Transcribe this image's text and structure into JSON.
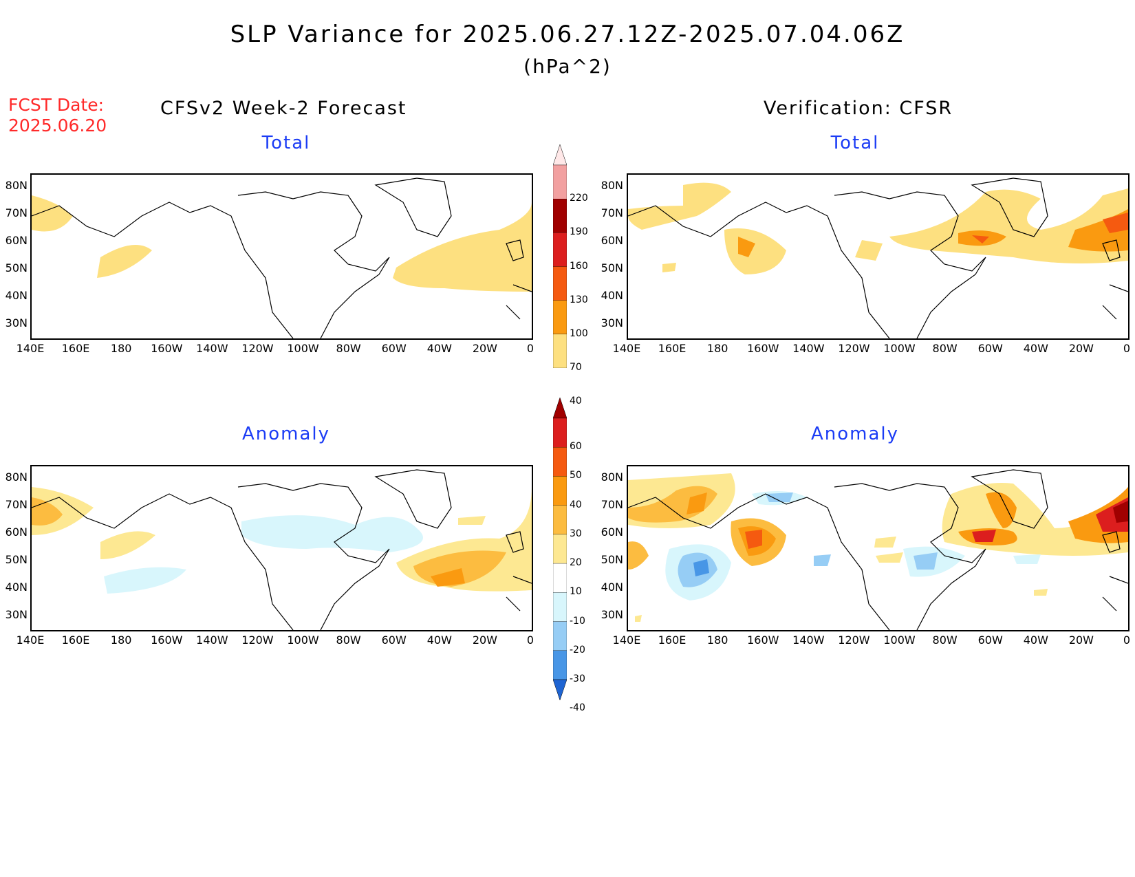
{
  "title": "SLP Variance for 2025.06.27.12Z-2025.07.04.06Z",
  "units": "(hPa^2)",
  "fcst_date_label": "FCST Date:",
  "fcst_date_value": "2025.06.20",
  "left_header": "CFSv2 Week-2 Forecast",
  "right_header": "Verification: CFSR",
  "panels": {
    "top_left_title": "Total",
    "top_right_title": "Total",
    "bottom_left_title": "Anomaly",
    "bottom_right_title": "Anomaly"
  },
  "lat_labels": [
    "80N",
    "70N",
    "60N",
    "50N",
    "40N",
    "30N"
  ],
  "lon_labels": [
    "140E",
    "160E",
    "180",
    "160W",
    "140W",
    "120W",
    "100W",
    "80W",
    "60W",
    "40W",
    "20W",
    "0"
  ],
  "total_colorbar": {
    "labels": [
      "220",
      "190",
      "160",
      "130",
      "100",
      "70",
      "40"
    ],
    "colors": [
      "#ffe8e8",
      "#f2a0a0",
      "#a00000",
      "#dc1e1e",
      "#f55a10",
      "#fa9a10",
      "#fde080"
    ]
  },
  "anomaly_colorbar": {
    "labels": [
      "60",
      "50",
      "40",
      "30",
      "20",
      "10",
      "-10",
      "-20",
      "-30",
      "-40"
    ],
    "colors": [
      "#a00000",
      "#dc1e1e",
      "#f55a10",
      "#fa9a10",
      "#fcbc40",
      "#fde892",
      "#ffffff",
      "#d8f6fc",
      "#96cdf5",
      "#4896e6",
      "#1e64d2"
    ]
  }
}
